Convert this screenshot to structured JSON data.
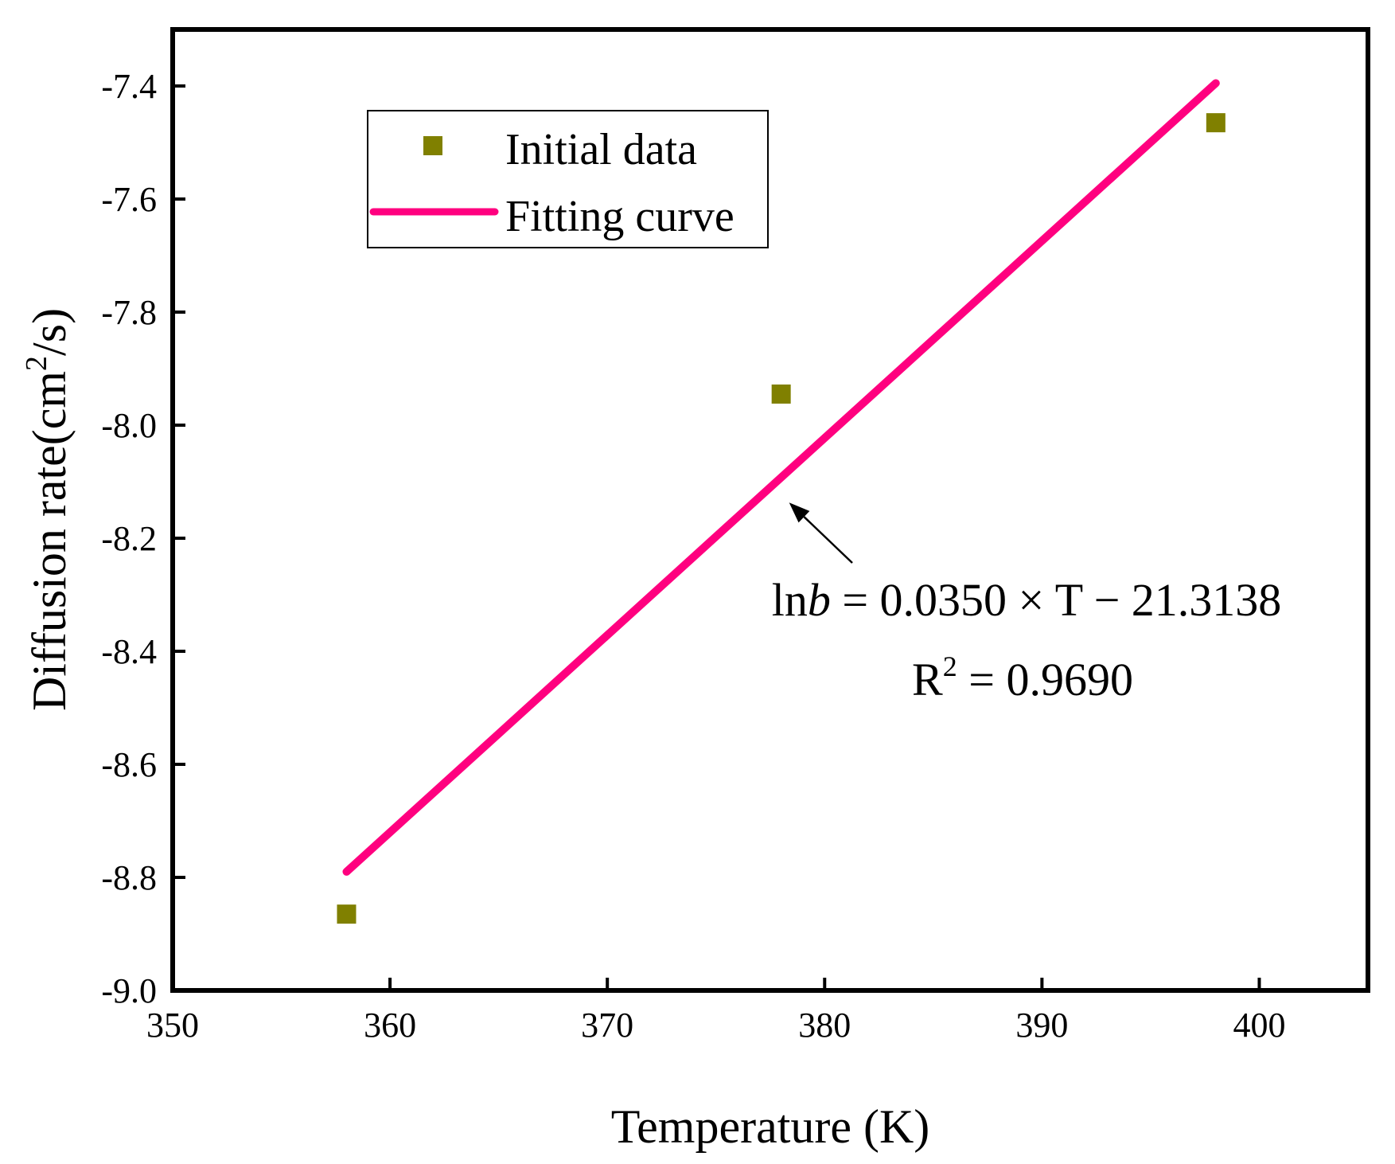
{
  "chart_data": {
    "type": "scatter",
    "xlabel": "Temperature (K)",
    "ylabel": {
      "prefix": "Diffusion rate(cm",
      "sup": "2",
      "suffix": "/s)"
    },
    "xlim": [
      350,
      405
    ],
    "ylim": [
      -9.0,
      -7.3
    ],
    "xticks": [
      350,
      360,
      370,
      380,
      390,
      400
    ],
    "xtick_labels": [
      "350",
      "360",
      "370",
      "380",
      "390",
      "400"
    ],
    "yticks": [
      -9.0,
      -8.8,
      -8.6,
      -8.4,
      -8.2,
      -8.0,
      -7.8,
      -7.6,
      -7.4
    ],
    "ytick_labels": [
      "-9.0",
      "-8.8",
      "-8.6",
      "-8.4",
      "-8.2",
      "-8.0",
      "-7.8",
      "-7.6",
      "-7.4"
    ],
    "series": [
      {
        "name": "Initial data",
        "type": "scatter",
        "marker": "square",
        "color": "#808000",
        "x": [
          358,
          378,
          398
        ],
        "y": [
          -8.865,
          -7.945,
          -7.465
        ]
      },
      {
        "name": "Fitting curve",
        "type": "line",
        "color": "#ff007f",
        "x": [
          358,
          398
        ],
        "y": [
          -8.79,
          -7.395
        ]
      }
    ],
    "legend": {
      "position": "top-left",
      "entries": [
        "Initial data",
        "Fitting curve"
      ]
    },
    "annotation": {
      "equation_prefix": "ln",
      "equation_var": "b",
      "equation_rest": " = 0.0350 × T − 21.3138",
      "r2_prefix": "R",
      "r2_sup": "2",
      "r2_rest": " = 0.9690",
      "arrow_target": [
        378,
        -8.12
      ]
    },
    "grid": false
  }
}
